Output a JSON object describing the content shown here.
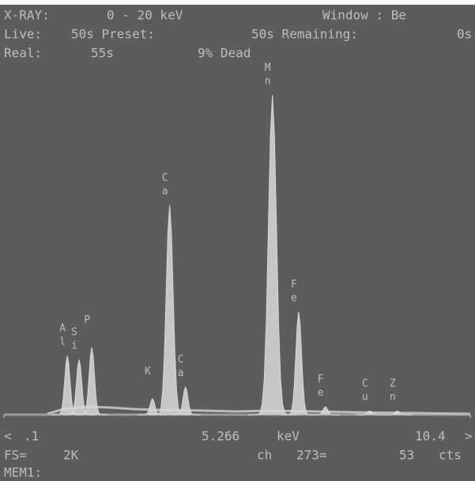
{
  "header": {
    "row1": [
      "X-RAY:",
      "0 - 20 keV",
      "Window : Be"
    ],
    "row2": [
      "Live:",
      "50s Preset:",
      "50s Remaining:",
      "0s"
    ],
    "row3": [
      "Real:",
      "55s",
      "9% Dead"
    ]
  },
  "footer": {
    "row1": [
      "<",
      "5.266",
      "keV",
      ">"
    ],
    "row2": [
      "FS=",
      "ch",
      "273=",
      "53",
      "cts"
    ],
    "row3": [
      "MEM1:"
    ]
  },
  "chart_data": {
    "type": "spectrum",
    "labels": [
      "Al",
      "Si",
      "P",
      "K",
      "Ca",
      "Ca",
      "Mn",
      "Fe",
      "Fe",
      "Cu",
      "Zn"
    ],
    "x": [
      1.5,
      1.76,
      2.04,
      3.38,
      3.76,
      4.11,
      6.03,
      6.61,
      7.2,
      8.18,
      8.79
    ],
    "values": [
      320,
      300,
      365,
      86,
      1140,
      150,
      1740,
      560,
      43,
      20,
      20
    ],
    "color": "#d8d8d8",
    "xlim": [
      0.1,
      10.4
    ],
    "xticks": [
      {
        "value": 0.1,
        "label": ".1"
      },
      {
        "value": 10.4,
        "label": "10.4"
      }
    ],
    "ylim": [
      0,
      2000
    ],
    "yticks": [
      {
        "value": 2000,
        "label": "2K"
      }
    ]
  }
}
